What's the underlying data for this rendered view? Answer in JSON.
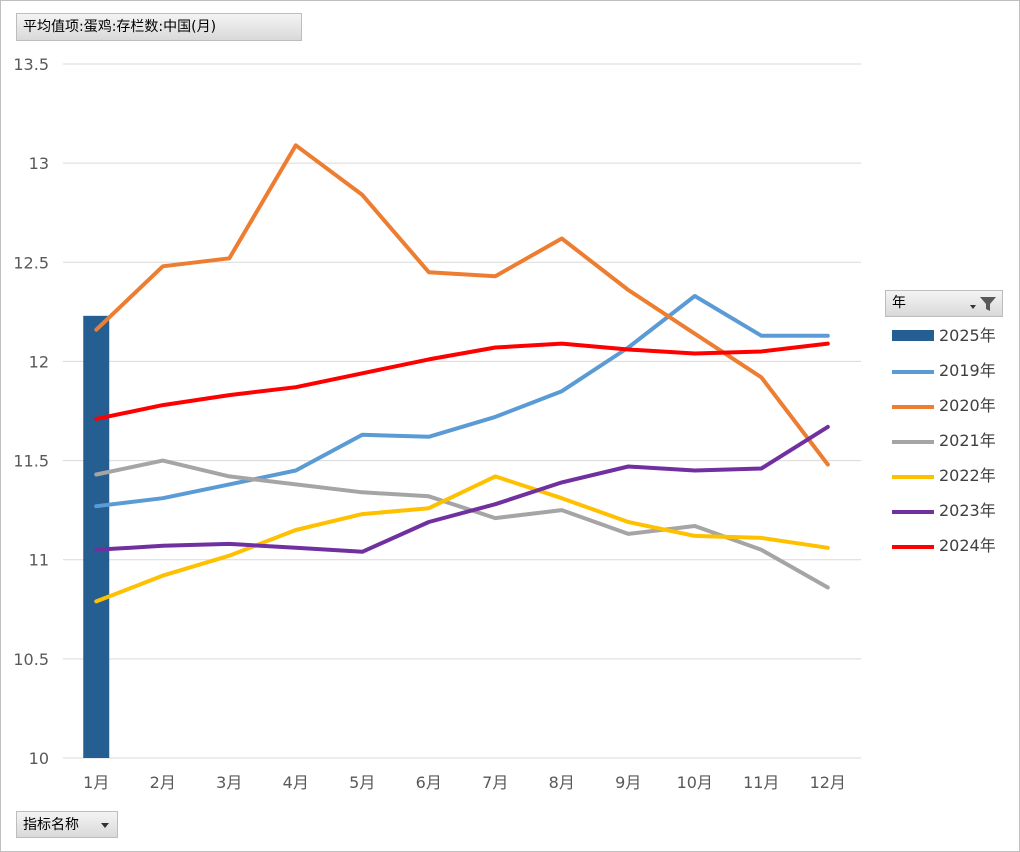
{
  "title_button": {
    "label": "平均值项:蛋鸡:存栏数:中国(月)"
  },
  "bottom_button": {
    "label": "指标名称"
  },
  "legend_header": {
    "label": "年",
    "filter_icon": "filter-icon"
  },
  "chart_data": {
    "type": "line",
    "title": "平均值项:蛋鸡:存栏数:中国(月)",
    "xlabel": "",
    "ylabel": "",
    "ylim": [
      10,
      13.5
    ],
    "yticks": [
      "10",
      "10.5",
      "11",
      "11.5",
      "12",
      "12.5",
      "13",
      "13.5"
    ],
    "ytick_values": [
      10,
      10.5,
      11,
      11.5,
      12,
      12.5,
      13,
      13.5
    ],
    "grid": true,
    "legend_position": "right",
    "categories": [
      "1月",
      "2月",
      "3月",
      "4月",
      "5月",
      "6月",
      "7月",
      "8月",
      "9月",
      "10月",
      "11月",
      "12月"
    ],
    "bar_series": [
      {
        "name": "2025年",
        "color": "#255e91",
        "values": [
          12.23,
          null,
          null,
          null,
          null,
          null,
          null,
          null,
          null,
          null,
          null,
          null
        ]
      }
    ],
    "series": [
      {
        "name": "2019年",
        "color": "#5b9bd5",
        "values": [
          11.27,
          11.31,
          11.38,
          11.45,
          11.63,
          11.62,
          11.72,
          11.85,
          12.07,
          12.33,
          12.13,
          12.13
        ]
      },
      {
        "name": "2020年",
        "color": "#ed7d31",
        "values": [
          12.16,
          12.48,
          12.52,
          13.09,
          12.84,
          12.45,
          12.43,
          12.62,
          12.36,
          12.14,
          11.92,
          11.48
        ]
      },
      {
        "name": "2021年",
        "color": "#a5a5a5",
        "values": [
          11.43,
          11.5,
          11.42,
          11.38,
          11.34,
          11.32,
          11.21,
          11.25,
          11.13,
          11.17,
          11.05,
          10.86
        ]
      },
      {
        "name": "2022年",
        "color": "#ffc000",
        "values": [
          10.79,
          10.92,
          11.02,
          11.15,
          11.23,
          11.26,
          11.42,
          11.31,
          11.19,
          11.12,
          11.11,
          11.06
        ]
      },
      {
        "name": "2023年",
        "color": "#7030a0",
        "values": [
          11.05,
          11.07,
          11.08,
          11.06,
          11.04,
          11.19,
          11.28,
          11.39,
          11.47,
          11.45,
          11.46,
          11.67
        ]
      },
      {
        "name": "2024年",
        "color": "#ff0000",
        "values": [
          11.71,
          11.78,
          11.83,
          11.87,
          11.94,
          12.01,
          12.07,
          12.09,
          12.06,
          12.04,
          12.05,
          12.09
        ]
      }
    ]
  }
}
